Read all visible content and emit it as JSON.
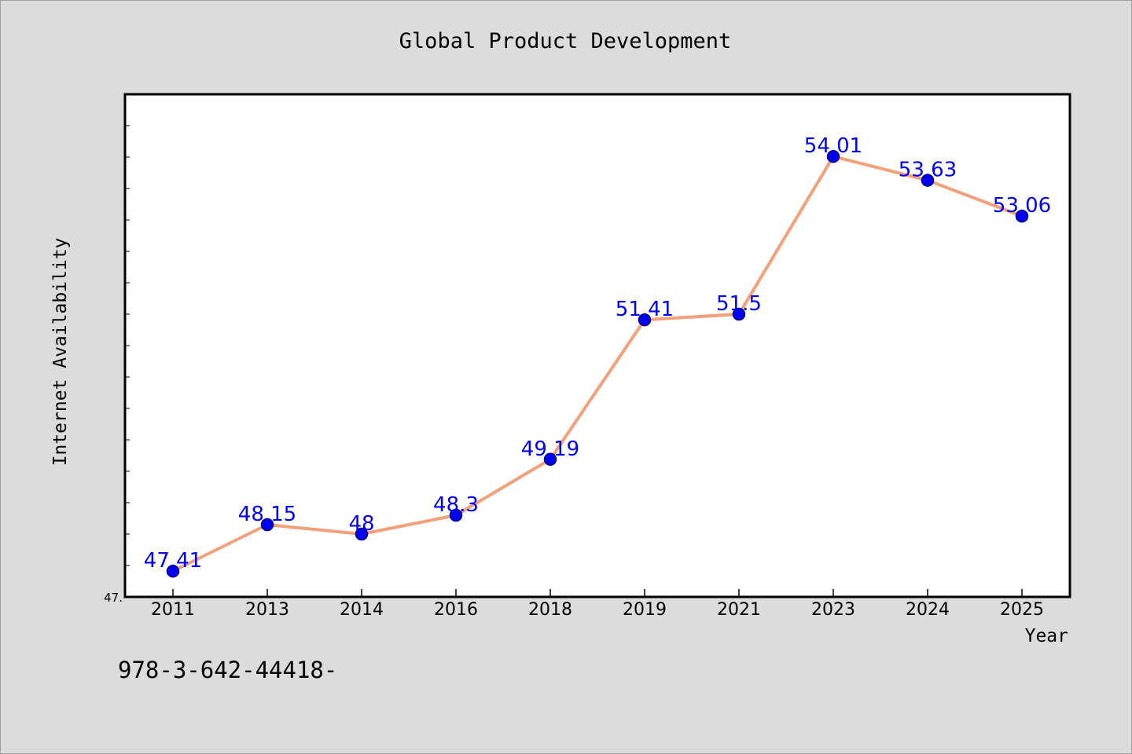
{
  "chart_data": {
    "type": "line",
    "title": "Global Product Development",
    "xlabel": "Year",
    "ylabel": "Internet Availability",
    "categories": [
      "2011",
      "2013",
      "2014",
      "2016",
      "2018",
      "2019",
      "2021",
      "2023",
      "2024",
      "2025"
    ],
    "series": [
      {
        "values": [
          47.41,
          48.15,
          48,
          48.3,
          49.19,
          51.41,
          51.5,
          54.01,
          53.63,
          53.06
        ],
        "labels": [
          "47.41",
          "48.15",
          "48",
          "48.3",
          "49.19",
          "51.41",
          "51.5",
          "54.01",
          "53.63",
          "53.06"
        ]
      }
    ],
    "ylim": [
      47,
      55
    ],
    "y_tick_labels": [
      "47."
    ],
    "grid": false,
    "legend": "none",
    "colors": {
      "line": "#f4a07a",
      "marker": "#0000ee",
      "marker_edge": "#000080",
      "data_label": "#0000ff",
      "plot_background": "#ffffff",
      "page_background": "#dcdcdc"
    }
  },
  "footer": {
    "text": "978-3-642-44418-"
  }
}
